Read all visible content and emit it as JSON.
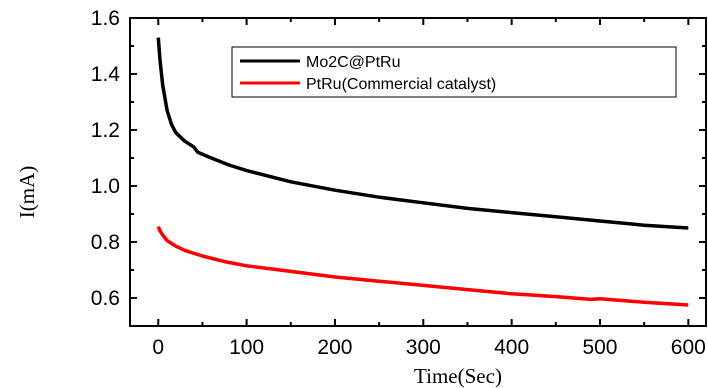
{
  "chart_data": {
    "type": "line",
    "title": "",
    "xlabel": "Time(Sec)",
    "ylabel": "I(mA)",
    "xlim": [
      -32,
      620
    ],
    "ylim": [
      0.5,
      1.6
    ],
    "xticks": [
      0,
      100,
      200,
      300,
      400,
      500,
      600
    ],
    "yticks": [
      0.6,
      0.8,
      1.0,
      1.2,
      1.4,
      1.6
    ],
    "xtick_labels": [
      "0",
      "100",
      "200",
      "300",
      "400",
      "500",
      "600"
    ],
    "ytick_labels": [
      "0.6",
      "0.8",
      "1.0",
      "1.2",
      "1.4",
      "1.6"
    ],
    "grid": false,
    "legend_position": "top-right",
    "series": [
      {
        "name": "Mo2C@PtRu",
        "color": "#000000",
        "x": [
          0,
          2,
          5,
          10,
          15,
          20,
          30,
          40,
          45,
          60,
          80,
          100,
          150,
          200,
          250,
          300,
          350,
          400,
          450,
          500,
          550,
          600
        ],
        "y": [
          1.53,
          1.45,
          1.36,
          1.27,
          1.22,
          1.19,
          1.16,
          1.14,
          1.12,
          1.1,
          1.075,
          1.055,
          1.015,
          0.985,
          0.96,
          0.94,
          0.92,
          0.905,
          0.89,
          0.875,
          0.86,
          0.85
        ]
      },
      {
        "name": "PtRu(Commercial catalyst)",
        "color": "#ff0000",
        "x": [
          0,
          2,
          5,
          10,
          20,
          30,
          50,
          75,
          100,
          150,
          200,
          250,
          300,
          350,
          400,
          450,
          490,
          500,
          550,
          600
        ],
        "y": [
          0.855,
          0.84,
          0.825,
          0.805,
          0.785,
          0.77,
          0.75,
          0.73,
          0.715,
          0.695,
          0.675,
          0.66,
          0.645,
          0.63,
          0.615,
          0.605,
          0.595,
          0.597,
          0.585,
          0.575
        ]
      }
    ]
  }
}
